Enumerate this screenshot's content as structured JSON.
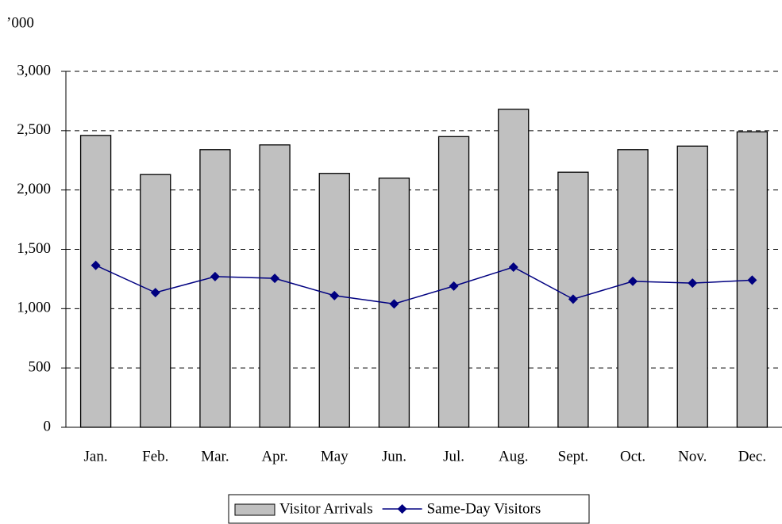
{
  "chart_data": {
    "type": "combo",
    "y_unit": "’000",
    "categories": [
      "Jan.",
      "Feb.",
      "Mar.",
      "Apr.",
      "May",
      "Jun.",
      "Jul.",
      "Aug.",
      "Sept.",
      "Oct.",
      "Nov.",
      "Dec."
    ],
    "series": [
      {
        "name": "Visitor Arrivals",
        "type": "bar",
        "color": "#c0c0c0",
        "values": [
          2460,
          2130,
          2340,
          2380,
          2140,
          2100,
          2450,
          2680,
          2150,
          2340,
          2370,
          2490
        ]
      },
      {
        "name": "Same-Day Visitors",
        "type": "line",
        "color": "#000080",
        "values": [
          1365,
          1135,
          1270,
          1255,
          1110,
          1040,
          1190,
          1350,
          1080,
          1230,
          1215,
          1240
        ]
      }
    ],
    "ylim": [
      0,
      3000
    ],
    "yticks": [
      0,
      500,
      {
        "value": 1000,
        "label": "1,000"
      },
      {
        "value": 1500,
        "label": "1,500"
      },
      {
        "value": 2000,
        "label": "2,000"
      },
      {
        "value": 2500,
        "label": "2,500"
      },
      {
        "value": 3000,
        "label": "3,000"
      }
    ],
    "grid": true,
    "legend": "bottom"
  }
}
